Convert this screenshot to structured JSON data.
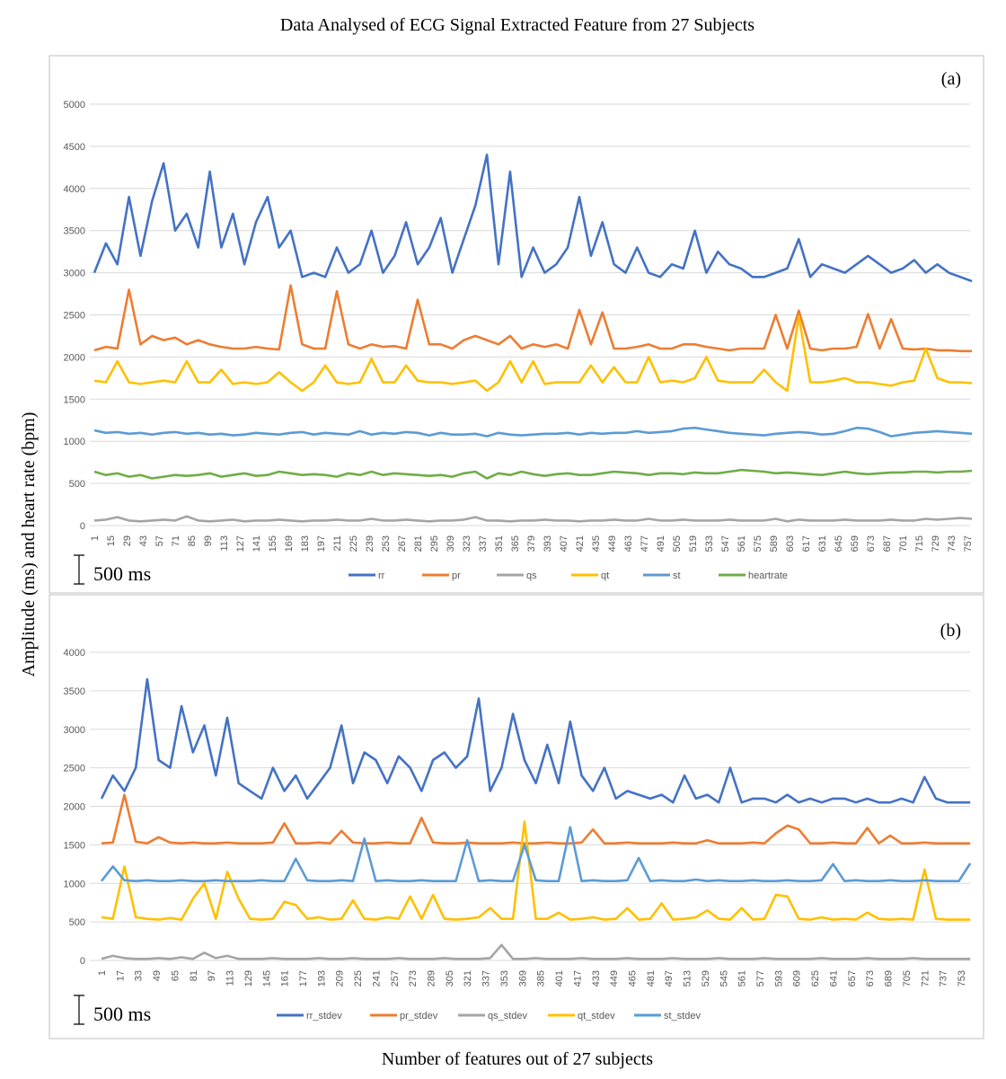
{
  "title": "Data Analysed of ECG Signal Extracted Feature from 27 Subjects",
  "ylabel": "Amplitude (ms) and heart rate (bpm)",
  "xlabel": "Number of features out of 27 subjects",
  "chart_data": [
    {
      "type": "line",
      "panel_label": "(a)",
      "scale_bar_label": "500 ms",
      "ylim": [
        0,
        5000
      ],
      "yticks": [
        0,
        500,
        1000,
        1500,
        2000,
        2500,
        3000,
        3500,
        4000,
        4500,
        5000
      ],
      "xtick_start": 1,
      "xtick_step": 14,
      "xtick_end": 757,
      "x_start": 1,
      "sample_step": 10,
      "x_max": 764,
      "grid": true,
      "legend_position": "bottom",
      "series": [
        {
          "name": "rr",
          "color": "#4472C4",
          "values": [
            3000,
            3350,
            3100,
            3900,
            3200,
            3850,
            4300,
            3500,
            3700,
            3300,
            4200,
            3300,
            3700,
            3100,
            3600,
            3900,
            3300,
            3500,
            2950,
            3000,
            2950,
            3300,
            3000,
            3100,
            3500,
            3000,
            3200,
            3600,
            3100,
            3300,
            3650,
            3000,
            3400,
            3800,
            4400,
            3100,
            4200,
            2950,
            3300,
            3000,
            3100,
            3300,
            3900,
            3200,
            3600,
            3100,
            3000,
            3300,
            3000,
            2950,
            3100,
            3050,
            3500,
            3000,
            3250,
            3100,
            3050,
            2950,
            2950,
            3000,
            3050,
            3400,
            2950,
            3100,
            3050,
            3000,
            3100,
            3200,
            3100,
            3000,
            3050,
            3150,
            3000,
            3100,
            3000,
            2950,
            2900
          ]
        },
        {
          "name": "pr",
          "color": "#ED7D31",
          "values": [
            2080,
            2120,
            2100,
            2800,
            2150,
            2250,
            2200,
            2230,
            2150,
            2200,
            2150,
            2120,
            2100,
            2100,
            2120,
            2100,
            2090,
            2850,
            2150,
            2100,
            2100,
            2780,
            2150,
            2100,
            2150,
            2120,
            2130,
            2100,
            2680,
            2150,
            2150,
            2100,
            2200,
            2250,
            2200,
            2150,
            2250,
            2100,
            2150,
            2120,
            2150,
            2100,
            2560,
            2150,
            2530,
            2100,
            2100,
            2120,
            2150,
            2100,
            2100,
            2150,
            2150,
            2120,
            2100,
            2080,
            2100,
            2100,
            2100,
            2500,
            2100,
            2550,
            2100,
            2080,
            2100,
            2100,
            2120,
            2510,
            2100,
            2450,
            2100,
            2090,
            2100,
            2080,
            2080,
            2070,
            2070
          ]
        },
        {
          "name": "qs",
          "color": "#A5A5A5",
          "values": [
            60,
            70,
            100,
            60,
            50,
            60,
            70,
            60,
            110,
            60,
            50,
            60,
            70,
            50,
            60,
            60,
            70,
            60,
            50,
            60,
            60,
            70,
            60,
            60,
            80,
            60,
            60,
            70,
            60,
            50,
            60,
            60,
            70,
            100,
            60,
            60,
            50,
            60,
            60,
            70,
            60,
            60,
            50,
            60,
            60,
            70,
            60,
            60,
            80,
            60,
            60,
            70,
            60,
            60,
            60,
            70,
            60,
            60,
            60,
            80,
            50,
            70,
            60,
            60,
            60,
            70,
            60,
            60,
            60,
            70,
            60,
            60,
            80,
            70,
            80,
            90,
            80
          ]
        },
        {
          "name": "qt",
          "color": "#FFC000",
          "values": [
            1720,
            1700,
            1950,
            1700,
            1680,
            1700,
            1720,
            1700,
            1950,
            1700,
            1700,
            1850,
            1680,
            1700,
            1680,
            1700,
            1820,
            1700,
            1600,
            1700,
            1900,
            1700,
            1680,
            1700,
            1980,
            1700,
            1700,
            1900,
            1720,
            1700,
            1700,
            1680,
            1700,
            1720,
            1600,
            1700,
            1950,
            1700,
            1950,
            1680,
            1700,
            1700,
            1700,
            1900,
            1700,
            1880,
            1700,
            1700,
            2000,
            1700,
            1720,
            1700,
            1750,
            2000,
            1720,
            1700,
            1700,
            1700,
            1850,
            1700,
            1600,
            2480,
            1700,
            1700,
            1720,
            1750,
            1700,
            1700,
            1680,
            1660,
            1700,
            1720,
            2100,
            1750,
            1700,
            1700,
            1690
          ]
        },
        {
          "name": "st",
          "color": "#5B9BD5",
          "values": [
            1130,
            1100,
            1110,
            1090,
            1100,
            1080,
            1100,
            1110,
            1090,
            1100,
            1080,
            1090,
            1070,
            1080,
            1100,
            1090,
            1080,
            1100,
            1110,
            1080,
            1100,
            1090,
            1080,
            1120,
            1080,
            1100,
            1090,
            1110,
            1100,
            1070,
            1100,
            1080,
            1080,
            1090,
            1060,
            1100,
            1080,
            1070,
            1080,
            1090,
            1090,
            1100,
            1080,
            1100,
            1090,
            1100,
            1100,
            1120,
            1100,
            1110,
            1120,
            1150,
            1160,
            1140,
            1120,
            1100,
            1090,
            1080,
            1070,
            1090,
            1100,
            1110,
            1100,
            1080,
            1090,
            1120,
            1160,
            1150,
            1110,
            1060,
            1080,
            1100,
            1110,
            1120,
            1110,
            1100,
            1090
          ]
        },
        {
          "name": "heartrate",
          "color": "#70AD47",
          "values": [
            640,
            600,
            620,
            580,
            600,
            560,
            580,
            600,
            590,
            600,
            620,
            580,
            600,
            620,
            590,
            600,
            640,
            620,
            600,
            610,
            600,
            580,
            620,
            600,
            640,
            600,
            620,
            610,
            600,
            590,
            600,
            580,
            620,
            640,
            560,
            620,
            600,
            640,
            610,
            590,
            610,
            620,
            600,
            600,
            620,
            640,
            630,
            620,
            600,
            620,
            620,
            610,
            630,
            620,
            620,
            640,
            660,
            650,
            640,
            620,
            630,
            620,
            610,
            600,
            620,
            640,
            620,
            610,
            620,
            630,
            630,
            640,
            640,
            630,
            640,
            640,
            650
          ]
        }
      ]
    },
    {
      "type": "line",
      "panel_label": "(b)",
      "scale_bar_label": "500 ms",
      "ylim": [
        0,
        4000
      ],
      "yticks": [
        0,
        500,
        1000,
        1500,
        2000,
        2500,
        3000,
        3500,
        4000
      ],
      "xtick_start": 1,
      "xtick_step": 16,
      "xtick_end": 753,
      "x_start": 1,
      "sample_step": 10,
      "x_max": 764,
      "grid": true,
      "legend_position": "bottom",
      "series": [
        {
          "name": "rr_stdev",
          "color": "#4472C4",
          "values": [
            2100,
            2400,
            2200,
            2500,
            3650,
            2600,
            2500,
            3300,
            2700,
            3050,
            2400,
            3150,
            2300,
            2200,
            2100,
            2500,
            2200,
            2400,
            2100,
            2300,
            2500,
            3050,
            2300,
            2700,
            2600,
            2300,
            2650,
            2500,
            2200,
            2600,
            2700,
            2500,
            2650,
            3400,
            2200,
            2500,
            3200,
            2600,
            2300,
            2800,
            2300,
            3100,
            2400,
            2200,
            2500,
            2100,
            2200,
            2150,
            2100,
            2150,
            2050,
            2400,
            2100,
            2150,
            2050,
            2500,
            2050,
            2100,
            2100,
            2050,
            2150,
            2050,
            2100,
            2050,
            2100,
            2100,
            2050,
            2100,
            2050,
            2050,
            2100,
            2050,
            2380,
            2100,
            2050,
            2050,
            2050
          ]
        },
        {
          "name": "pr_stdev",
          "color": "#ED7D31",
          "values": [
            1520,
            1530,
            2150,
            1540,
            1520,
            1600,
            1530,
            1520,
            1530,
            1520,
            1520,
            1530,
            1520,
            1520,
            1520,
            1530,
            1780,
            1520,
            1520,
            1530,
            1520,
            1680,
            1530,
            1520,
            1520,
            1530,
            1520,
            1520,
            1850,
            1530,
            1520,
            1520,
            1530,
            1520,
            1520,
            1520,
            1530,
            1520,
            1520,
            1530,
            1520,
            1520,
            1530,
            1700,
            1520,
            1520,
            1530,
            1520,
            1520,
            1520,
            1530,
            1520,
            1520,
            1560,
            1520,
            1520,
            1520,
            1530,
            1520,
            1650,
            1750,
            1700,
            1520,
            1520,
            1530,
            1520,
            1520,
            1720,
            1520,
            1620,
            1520,
            1520,
            1530,
            1520,
            1520,
            1520,
            1520
          ]
        },
        {
          "name": "qs_stdev",
          "color": "#A5A5A5",
          "values": [
            20,
            60,
            30,
            20,
            20,
            30,
            20,
            40,
            20,
            100,
            30,
            60,
            20,
            20,
            20,
            30,
            20,
            20,
            20,
            30,
            20,
            20,
            30,
            20,
            20,
            20,
            30,
            20,
            20,
            20,
            30,
            20,
            20,
            20,
            30,
            200,
            20,
            20,
            30,
            20,
            20,
            20,
            30,
            20,
            20,
            20,
            30,
            20,
            20,
            20,
            30,
            20,
            20,
            20,
            30,
            20,
            20,
            20,
            30,
            20,
            20,
            20,
            20,
            30,
            20,
            20,
            20,
            30,
            20,
            20,
            20,
            30,
            20,
            20,
            20,
            20,
            20
          ]
        },
        {
          "name": "qt_stdev",
          "color": "#FFC000",
          "values": [
            560,
            540,
            1220,
            560,
            540,
            530,
            550,
            530,
            800,
            1000,
            540,
            1150,
            800,
            540,
            530,
            540,
            760,
            720,
            540,
            560,
            530,
            540,
            780,
            540,
            530,
            560,
            540,
            830,
            540,
            850,
            540,
            530,
            540,
            560,
            680,
            540,
            540,
            1800,
            540,
            540,
            620,
            530,
            540,
            560,
            530,
            540,
            680,
            530,
            540,
            740,
            530,
            540,
            560,
            650,
            540,
            530,
            680,
            530,
            540,
            850,
            830,
            540,
            530,
            560,
            530,
            540,
            530,
            620,
            540,
            530,
            540,
            530,
            1180,
            540,
            530,
            530,
            530
          ]
        },
        {
          "name": "st_stdev",
          "color": "#5B9BD5",
          "values": [
            1030,
            1220,
            1040,
            1030,
            1040,
            1030,
            1030,
            1040,
            1030,
            1030,
            1040,
            1030,
            1030,
            1030,
            1040,
            1030,
            1030,
            1320,
            1040,
            1030,
            1030,
            1040,
            1030,
            1580,
            1030,
            1040,
            1030,
            1030,
            1040,
            1030,
            1030,
            1030,
            1560,
            1030,
            1040,
            1030,
            1030,
            1500,
            1040,
            1030,
            1030,
            1730,
            1030,
            1040,
            1030,
            1030,
            1040,
            1330,
            1030,
            1040,
            1030,
            1030,
            1050,
            1030,
            1040,
            1030,
            1030,
            1040,
            1030,
            1030,
            1040,
            1030,
            1030,
            1040,
            1250,
            1030,
            1040,
            1030,
            1030,
            1040,
            1030,
            1030,
            1040,
            1030,
            1030,
            1030,
            1260
          ]
        }
      ]
    }
  ]
}
